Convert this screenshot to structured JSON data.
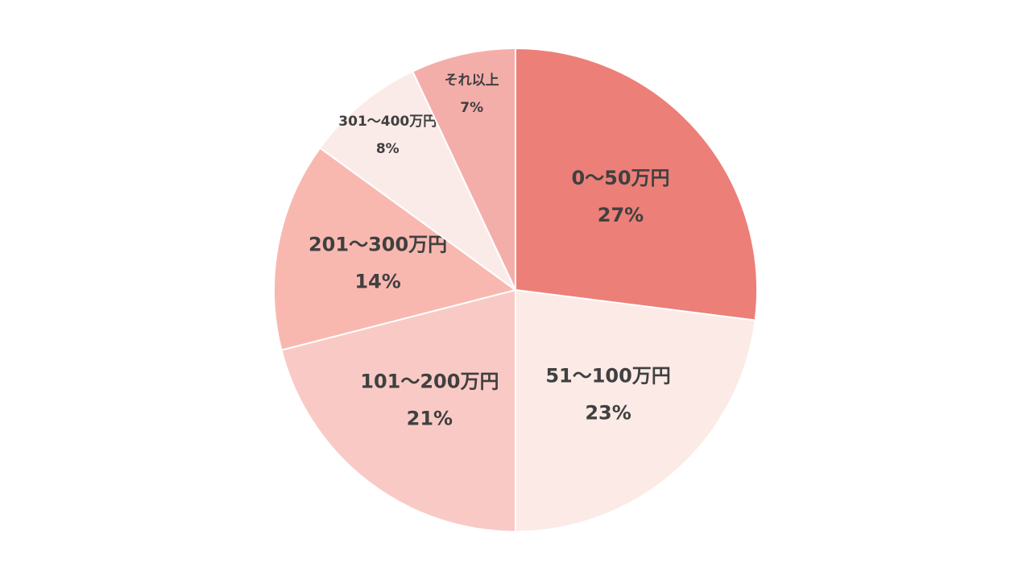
{
  "chart_data": {
    "type": "pie",
    "categories": [
      "0～50万円",
      "51～100万円",
      "101～200万円",
      "201～300万円",
      "301～400万円",
      "それ以上"
    ],
    "values": [
      27,
      23,
      21,
      14,
      8,
      7
    ],
    "value_labels": [
      "27%",
      "23%",
      "21%",
      "14%",
      "8%",
      "7%"
    ],
    "colors": [
      "#ec7f78",
      "#fbeae6",
      "#f9cac5",
      "#f8b8b0",
      "#fbebe8",
      "#f4aeaa"
    ]
  }
}
